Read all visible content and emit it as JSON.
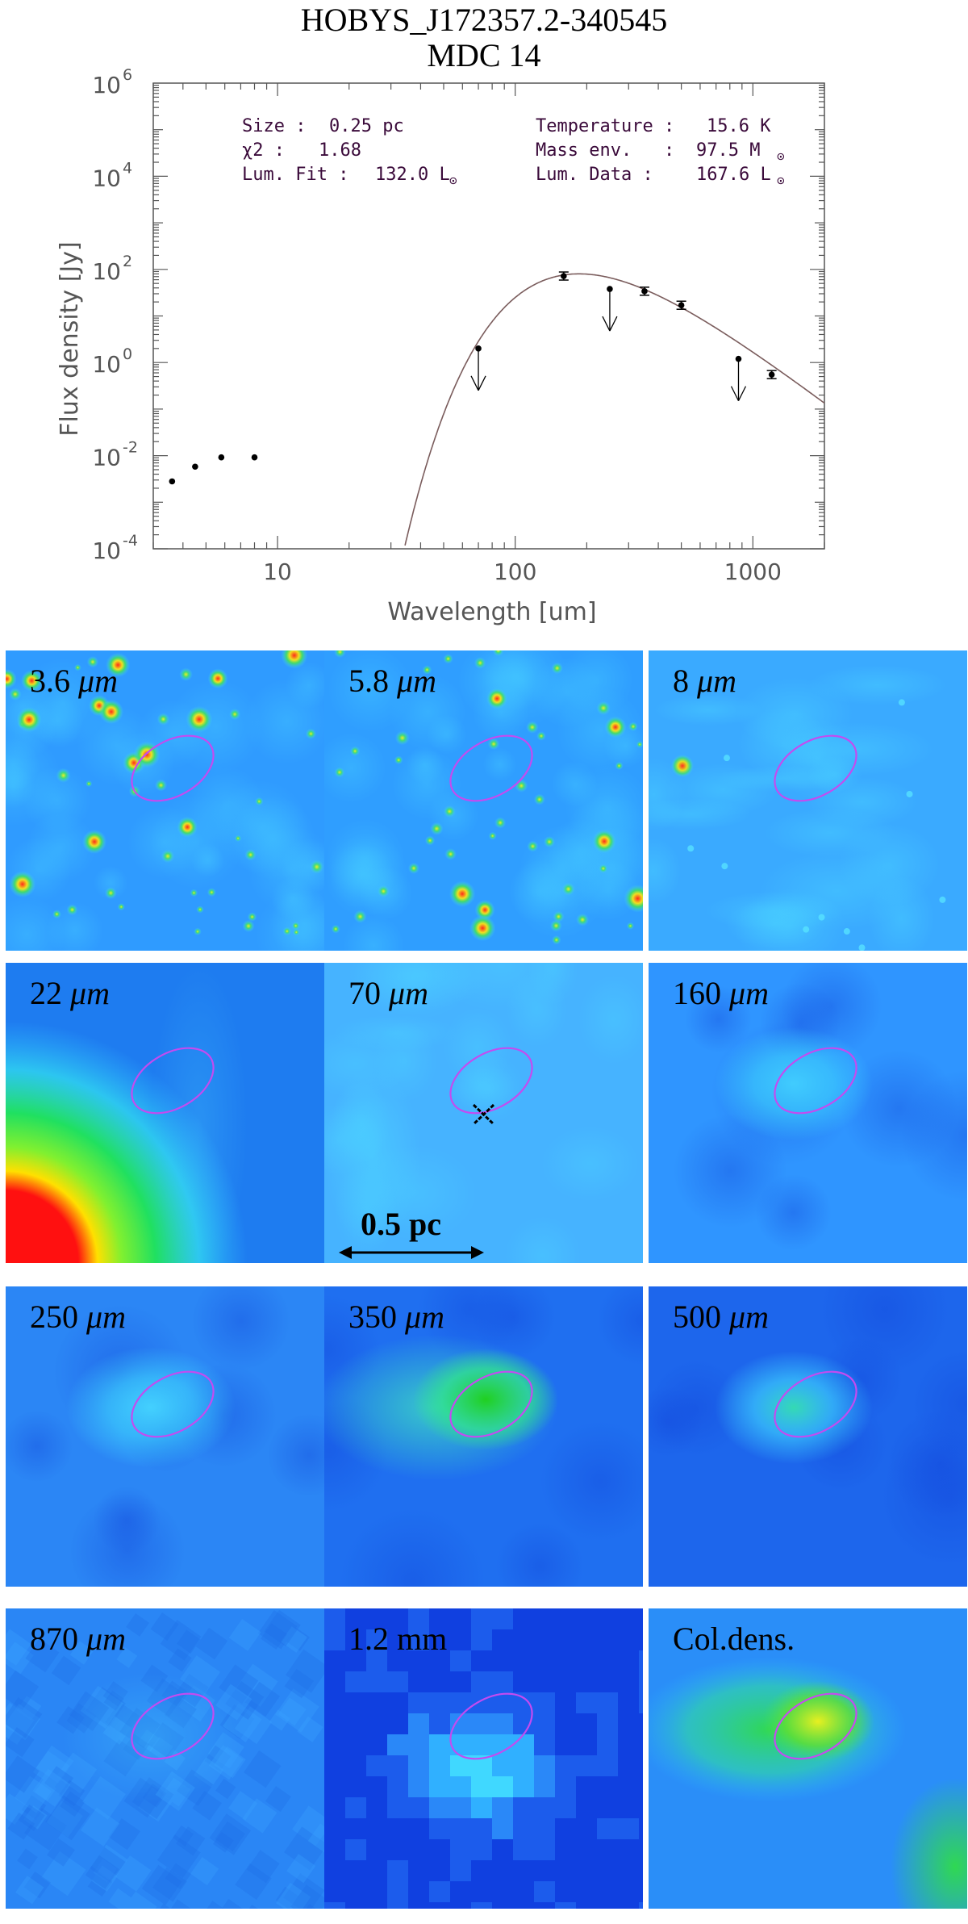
{
  "title": {
    "line1": "HOBYS_J172357.2-340545",
    "line2": "MDC 14"
  },
  "fit_info": {
    "size_label": "Size :",
    "size_value": "0.25 pc",
    "chi2_label": "χ2 :",
    "chi2_value": "1.68",
    "lumfit_label": "Lum. Fit :",
    "lumfit_value": "132.0 L",
    "temp_label": "Temperature :",
    "temp_value": "15.6 K",
    "mass_label": "Mass env.   :",
    "mass_value": "97.5 M",
    "lumdata_label": "Lum. Data :",
    "lumdata_value": "167.6 L"
  },
  "chart_data": {
    "type": "scatter",
    "xlabel": "Wavelength [um]",
    "ylabel": "Flux density [Jy]",
    "xscale": "log",
    "yscale": "log",
    "xlim": [
      3,
      2000
    ],
    "ylim": [
      0.0001,
      1000000
    ],
    "x_tick_labels": [
      "10",
      "100",
      "1000"
    ],
    "y_tick_labels": [
      {
        "base": "10",
        "exp": "-4",
        "value": 0.0001
      },
      {
        "base": "10",
        "exp": "-2",
        "value": 0.01
      },
      {
        "base": "10",
        "exp": "0",
        "value": 1
      },
      {
        "base": "10",
        "exp": "2",
        "value": 100
      },
      {
        "base": "10",
        "exp": "4",
        "value": 10000
      },
      {
        "base": "10",
        "exp": "6",
        "value": 1000000
      }
    ],
    "points": [
      {
        "x": 3.6,
        "y": 0.0028,
        "type": "detection"
      },
      {
        "x": 4.5,
        "y": 0.0058,
        "type": "detection"
      },
      {
        "x": 5.8,
        "y": 0.0092,
        "type": "detection"
      },
      {
        "x": 8.0,
        "y": 0.0092,
        "type": "detection"
      },
      {
        "x": 70,
        "y": 2.0,
        "type": "upper_limit"
      },
      {
        "x": 160,
        "y": 72,
        "type": "detection_err"
      },
      {
        "x": 250,
        "y": 38,
        "type": "upper_limit"
      },
      {
        "x": 350,
        "y": 34,
        "type": "detection_err"
      },
      {
        "x": 500,
        "y": 17,
        "type": "detection_err"
      },
      {
        "x": 870,
        "y": 1.2,
        "type": "upper_limit"
      },
      {
        "x": 1200,
        "y": 0.55,
        "type": "detection_err"
      }
    ],
    "fit_curve": {
      "temperature_K": 15.6,
      "peak_wavelength_um": 180,
      "peak_flux_Jy": 80,
      "beta": 2
    }
  },
  "panels": [
    {
      "label_num": "3.6",
      "label_unit": "μm",
      "mode": "stars",
      "bg": "#2f9bff",
      "seed": 3
    },
    {
      "label_num": "5.8",
      "label_unit": "μm",
      "mode": "stars",
      "bg": "#2f9eff",
      "seed": 5
    },
    {
      "label_num": "8",
      "label_unit": "μm",
      "mode": "diffuse8",
      "bg": "#3aaaff",
      "seed": 8
    },
    {
      "label_num": "22",
      "label_unit": "μm",
      "mode": "hot22",
      "bg": "#1e7cf0",
      "seed": 22
    },
    {
      "label_num": "70",
      "label_unit": "μm",
      "mode": "diffuse70",
      "bg": "#46b3ff",
      "seed": 70
    },
    {
      "label_num": "160",
      "label_unit": "μm",
      "mode": "blob",
      "bg": "#2f95ff",
      "seed": 160,
      "blob_color": "#42d0ff",
      "blob_r": 70
    },
    {
      "label_num": "250",
      "label_unit": "μm",
      "mode": "blob",
      "bg": "#2b86f5",
      "seed": 250,
      "blob_color": "#45d5ff",
      "blob_r": 75
    },
    {
      "label_num": "350",
      "label_unit": "μm",
      "mode": "blob_strong",
      "bg": "#1f6ff0",
      "seed": 350,
      "blob_color": "#33e0a0",
      "blob_r": 90
    },
    {
      "label_num": "500",
      "label_unit": "μm",
      "mode": "blob",
      "bg": "#1d66ec",
      "seed": 500,
      "blob_color": "#35e0b0",
      "blob_r": 70
    },
    {
      "label_num": "870",
      "label_unit": "μm",
      "mode": "noise",
      "bg": "#2a86f5",
      "seed": 870
    },
    {
      "label_num": "1.2",
      "label_unit": "mm",
      "mode": "pixel",
      "bg": "#1040e0",
      "seed": 1200
    },
    {
      "label_num": "",
      "label_unit": "Col.dens.",
      "mode": "coldens",
      "bg": "#2a8ef8",
      "seed": 9
    }
  ],
  "scalebar_label": "0.5 pc",
  "colors": {
    "ellipse": "#c44bf0",
    "curve": "#7a5c5c",
    "axis": "#555555",
    "info_text": "#3a0a3a"
  }
}
